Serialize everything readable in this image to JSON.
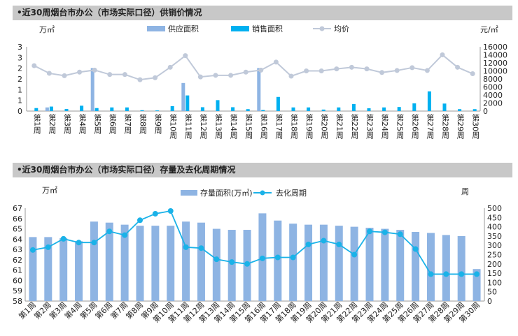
{
  "chart_data": [
    {
      "type": "bar",
      "title": "•近30周烟台市办公（市场实际口径）供销价情况",
      "left_unit": "万㎡",
      "right_unit": "元/㎡",
      "categories": [
        "第1周",
        "第2周",
        "第3周",
        "第4周",
        "第5周",
        "第6周",
        "第7周",
        "第8周",
        "第9周",
        "第10周",
        "第11周",
        "第12周",
        "第13周",
        "第14周",
        "第15周",
        "第16周",
        "第17周",
        "第18周",
        "第19周",
        "第20周",
        "第21周",
        "第22周",
        "第23周",
        "第24周",
        "第25周",
        "第26周",
        "第27周",
        "第28周",
        "第29周",
        "第30周"
      ],
      "left_ticks": [
        "0",
        "1",
        "1",
        "2",
        "2",
        "3",
        "3"
      ],
      "left_ylim": [
        0,
        3
      ],
      "right_ylim": [
        0,
        16000
      ],
      "right_ticks": [
        "0",
        "2000",
        "4000",
        "6000",
        "8000",
        "10000",
        "12000",
        "14000",
        "16000"
      ],
      "series": [
        {
          "name": "供应面积",
          "axis": "left",
          "kind": "bar",
          "color": "#8eb4e3",
          "values": [
            0,
            0.17,
            0,
            0,
            2.01,
            0,
            0,
            0,
            0,
            0,
            1.31,
            0,
            0,
            0,
            0,
            2.01,
            0,
            0,
            0,
            0,
            0,
            0,
            0,
            0,
            0,
            0,
            0,
            0,
            0,
            0
          ]
        },
        {
          "name": "销售面积",
          "axis": "left",
          "kind": "bar",
          "color": "#00b0f0",
          "values": [
            0.14,
            0.21,
            0.1,
            0.25,
            0.14,
            0.17,
            0.17,
            0.04,
            0.03,
            0.23,
            0.73,
            0.18,
            0.51,
            0.18,
            0.09,
            0.05,
            0.66,
            0.17,
            0.17,
            0.07,
            0.17,
            0.33,
            0.13,
            0.17,
            0.19,
            0.36,
            0.92,
            0.35,
            0.09,
            0.09
          ]
        },
        {
          "name": "均价",
          "axis": "right",
          "kind": "line",
          "color": "#c0c9d9",
          "values": [
            11300,
            9400,
            8800,
            9700,
            10200,
            9100,
            9100,
            7800,
            8300,
            10900,
            13800,
            8500,
            8900,
            8900,
            9700,
            10200,
            12200,
            8700,
            10000,
            10000,
            10500,
            10900,
            10500,
            9600,
            10100,
            10800,
            10100,
            14000,
            10900,
            9300
          ]
        }
      ]
    },
    {
      "type": "bar",
      "title": "•近30周烟台市办公（市场实际口径）存量及去化周期情况",
      "left_unit": "万㎡",
      "right_unit": "周",
      "categories": [
        "第1周",
        "第2周",
        "第3周",
        "第4周",
        "第5周",
        "第6周",
        "第7周",
        "第8周",
        "第9周",
        "第10周",
        "第11周",
        "第12周",
        "第13周",
        "第14周",
        "第15周",
        "第16周",
        "第17周",
        "第18周",
        "第19周",
        "第20周",
        "第21周",
        "第22周",
        "第23周",
        "第24周",
        "第25周",
        "第26周",
        "第27周",
        "第28周",
        "第29周",
        "第30周"
      ],
      "left_ylim": [
        58,
        67
      ],
      "left_ticks": [
        "58",
        "59",
        "60",
        "61",
        "62",
        "63",
        "64",
        "65",
        "66",
        "67"
      ],
      "right_ylim": [
        0,
        500
      ],
      "right_ticks": [
        "0",
        "50",
        "100",
        "150",
        "200",
        "250",
        "300",
        "350",
        "400",
        "450",
        "500"
      ],
      "series": [
        {
          "name": "存量面积(万㎡)",
          "axis": "left",
          "kind": "bar",
          "color": "#8eb4e3",
          "values": [
            64.2,
            64.2,
            64.1,
            63.8,
            65.7,
            65.6,
            65.4,
            65.3,
            65.3,
            65.3,
            65.7,
            65.6,
            65.0,
            64.9,
            64.9,
            66.5,
            65.8,
            65.5,
            65.4,
            65.4,
            65.3,
            65.2,
            65.1,
            65.0,
            64.9,
            64.7,
            64.6,
            64.4,
            64.3,
            61.1
          ]
        },
        {
          "name": "去化周期",
          "axis": "right",
          "kind": "line",
          "color": "#1ab2e8",
          "values": [
            275,
            290,
            335,
            315,
            315,
            375,
            355,
            435,
            470,
            485,
            290,
            285,
            225,
            210,
            200,
            230,
            235,
            235,
            305,
            325,
            305,
            250,
            375,
            370,
            360,
            280,
            145,
            145,
            145,
            145
          ]
        }
      ]
    }
  ]
}
